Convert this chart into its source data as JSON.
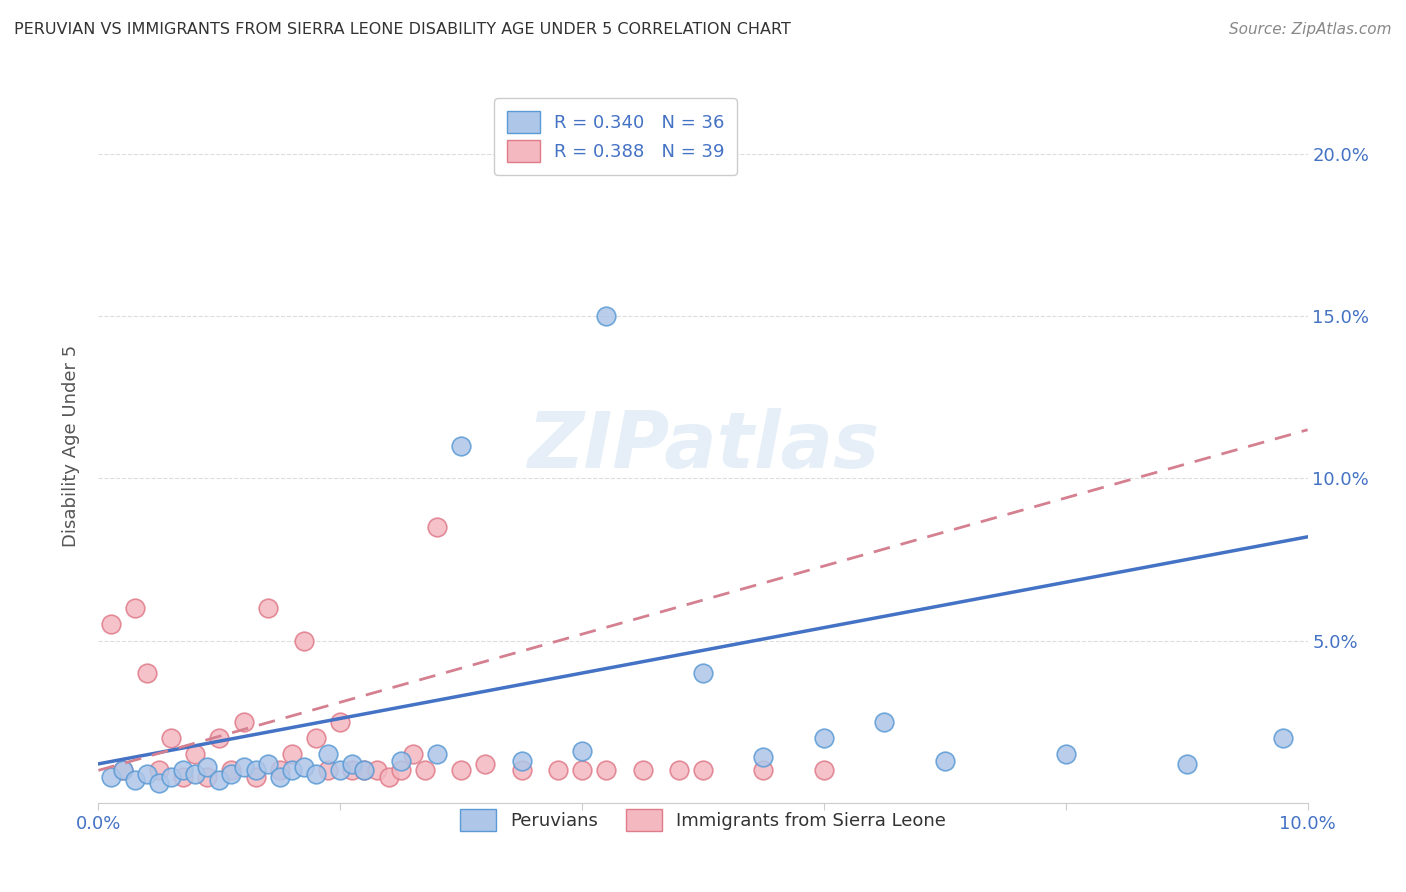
{
  "title": "PERUVIAN VS IMMIGRANTS FROM SIERRA LEONE DISABILITY AGE UNDER 5 CORRELATION CHART",
  "source": "Source: ZipAtlas.com",
  "ylabel": "Disability Age Under 5",
  "xlim": [
    0.0,
    0.1
  ],
  "ylim": [
    0.0,
    0.22
  ],
  "xticks": [
    0.0,
    0.02,
    0.04,
    0.06,
    0.08,
    0.1
  ],
  "yticks": [
    0.0,
    0.05,
    0.1,
    0.15,
    0.2
  ],
  "right_ytick_labels": [
    "",
    "5.0%",
    "10.0%",
    "15.0%",
    "20.0%"
  ],
  "xtick_labels": [
    "0.0%",
    "",
    "",
    "",
    "",
    "10.0%"
  ],
  "peruvian_color": "#aec6e8",
  "peruvian_edge_color": "#5b9bd5",
  "sierra_leone_color": "#f4b8c1",
  "sierra_leone_edge_color": "#e07b8a",
  "trend_peruvian_color": "#4472c4",
  "trend_sierra_leone_color": "#d48090",
  "background_color": "#ffffff",
  "grid_color": "#dddddd",
  "watermark": "ZIPatlas",
  "peruvian_x": [
    0.001,
    0.002,
    0.003,
    0.004,
    0.005,
    0.006,
    0.007,
    0.008,
    0.009,
    0.01,
    0.011,
    0.012,
    0.013,
    0.014,
    0.015,
    0.016,
    0.017,
    0.018,
    0.019,
    0.02,
    0.021,
    0.022,
    0.025,
    0.028,
    0.03,
    0.035,
    0.04,
    0.042,
    0.05,
    0.055,
    0.06,
    0.065,
    0.07,
    0.08,
    0.09,
    0.098
  ],
  "peruvian_y": [
    0.008,
    0.01,
    0.007,
    0.009,
    0.006,
    0.008,
    0.01,
    0.009,
    0.011,
    0.007,
    0.009,
    0.011,
    0.01,
    0.012,
    0.008,
    0.01,
    0.011,
    0.009,
    0.015,
    0.01,
    0.012,
    0.01,
    0.013,
    0.015,
    0.11,
    0.013,
    0.016,
    0.15,
    0.04,
    0.014,
    0.02,
    0.025,
    0.013,
    0.015,
    0.012,
    0.02
  ],
  "sierra_leone_x": [
    0.001,
    0.002,
    0.003,
    0.004,
    0.005,
    0.006,
    0.007,
    0.008,
    0.009,
    0.01,
    0.011,
    0.012,
    0.013,
    0.014,
    0.015,
    0.016,
    0.017,
    0.018,
    0.019,
    0.02,
    0.021,
    0.022,
    0.023,
    0.024,
    0.025,
    0.026,
    0.027,
    0.028,
    0.03,
    0.032,
    0.035,
    0.038,
    0.04,
    0.042,
    0.045,
    0.048,
    0.05,
    0.055,
    0.06
  ],
  "sierra_leone_y": [
    0.055,
    0.01,
    0.06,
    0.04,
    0.01,
    0.02,
    0.008,
    0.015,
    0.008,
    0.02,
    0.01,
    0.025,
    0.008,
    0.06,
    0.01,
    0.015,
    0.05,
    0.02,
    0.01,
    0.025,
    0.01,
    0.01,
    0.01,
    0.008,
    0.01,
    0.015,
    0.01,
    0.085,
    0.01,
    0.012,
    0.01,
    0.01,
    0.01,
    0.01,
    0.01,
    0.01,
    0.01,
    0.01,
    0.01
  ]
}
